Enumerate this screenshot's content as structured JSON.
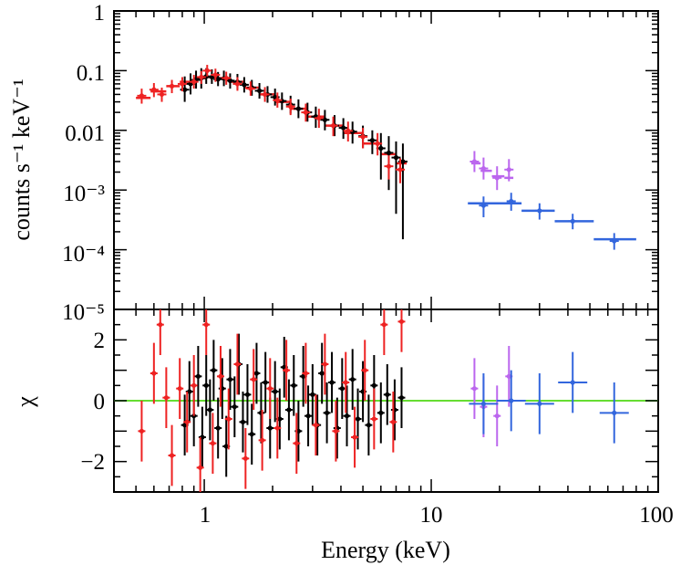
{
  "chart_data": [
    {
      "panel": "spectrum",
      "type": "scatter",
      "xscale": "log",
      "yscale": "log",
      "xlim": [
        0.4,
        100
      ],
      "ylim": [
        1e-05,
        1
      ],
      "ylabel": "counts s⁻¹ keV⁻¹",
      "ytick_labels": [
        "1",
        "0.1",
        "0.01",
        "10⁻³",
        "10⁻⁴",
        "10⁻⁵"
      ],
      "series": [
        {
          "color": "#000000",
          "style": "errorbars",
          "points": [
            {
              "x": 0.82,
              "y": 0.048,
              "lo": 0.03,
              "hi": 0.08
            },
            {
              "x": 0.87,
              "y": 0.06,
              "lo": 0.04,
              "hi": 0.09
            },
            {
              "x": 0.92,
              "y": 0.07,
              "lo": 0.05,
              "hi": 0.1
            },
            {
              "x": 0.97,
              "y": 0.075,
              "lo": 0.05,
              "hi": 0.11
            },
            {
              "x": 1.02,
              "y": 0.08,
              "lo": 0.06,
              "hi": 0.11
            },
            {
              "x": 1.08,
              "y": 0.078,
              "lo": 0.06,
              "hi": 0.105
            },
            {
              "x": 1.15,
              "y": 0.072,
              "lo": 0.055,
              "hi": 0.095
            },
            {
              "x": 1.22,
              "y": 0.074,
              "lo": 0.055,
              "hi": 0.1
            },
            {
              "x": 1.3,
              "y": 0.068,
              "lo": 0.05,
              "hi": 0.09
            },
            {
              "x": 1.4,
              "y": 0.065,
              "lo": 0.048,
              "hi": 0.088
            },
            {
              "x": 1.5,
              "y": 0.058,
              "lo": 0.043,
              "hi": 0.078
            },
            {
              "x": 1.62,
              "y": 0.052,
              "lo": 0.038,
              "hi": 0.07
            },
            {
              "x": 1.75,
              "y": 0.046,
              "lo": 0.034,
              "hi": 0.062
            },
            {
              "x": 1.9,
              "y": 0.04,
              "lo": 0.029,
              "hi": 0.055
            },
            {
              "x": 2.05,
              "y": 0.036,
              "lo": 0.026,
              "hi": 0.05
            },
            {
              "x": 2.2,
              "y": 0.031,
              "lo": 0.022,
              "hi": 0.043
            },
            {
              "x": 2.4,
              "y": 0.027,
              "lo": 0.019,
              "hi": 0.038
            },
            {
              "x": 2.6,
              "y": 0.023,
              "lo": 0.016,
              "hi": 0.033
            },
            {
              "x": 2.85,
              "y": 0.02,
              "lo": 0.014,
              "hi": 0.029
            },
            {
              "x": 3.1,
              "y": 0.017,
              "lo": 0.011,
              "hi": 0.025
            },
            {
              "x": 3.4,
              "y": 0.015,
              "lo": 0.01,
              "hi": 0.022
            },
            {
              "x": 3.75,
              "y": 0.012,
              "lo": 0.008,
              "hi": 0.018
            },
            {
              "x": 4.1,
              "y": 0.011,
              "lo": 0.0072,
              "hi": 0.016
            },
            {
              "x": 4.5,
              "y": 0.0095,
              "lo": 0.006,
              "hi": 0.014
            },
            {
              "x": 5.0,
              "y": 0.008,
              "lo": 0.005,
              "hi": 0.012
            },
            {
              "x": 5.5,
              "y": 0.0068,
              "lo": 0.004,
              "hi": 0.01
            },
            {
              "x": 6.0,
              "y": 0.005,
              "lo": 0.0015,
              "hi": 0.009
            },
            {
              "x": 6.5,
              "y": 0.0042,
              "lo": 0.001,
              "hi": 0.008
            },
            {
              "x": 7.0,
              "y": 0.0035,
              "lo": 0.0004,
              "hi": 0.0065
            },
            {
              "x": 7.5,
              "y": 0.003,
              "lo": 0.00015,
              "hi": 0.006
            }
          ]
        },
        {
          "color": "#ee2222",
          "style": "errorbars",
          "points": [
            {
              "x": 0.53,
              "y": 0.038,
              "lo": 0.028,
              "hi": 0.05
            },
            {
              "x": 0.6,
              "y": 0.048,
              "lo": 0.036,
              "hi": 0.062
            },
            {
              "x": 0.65,
              "y": 0.04,
              "lo": 0.03,
              "hi": 0.052
            },
            {
              "x": 0.72,
              "y": 0.055,
              "lo": 0.042,
              "hi": 0.07
            },
            {
              "x": 0.8,
              "y": 0.06,
              "lo": 0.045,
              "hi": 0.078
            },
            {
              "x": 0.9,
              "y": 0.065,
              "lo": 0.05,
              "hi": 0.085
            },
            {
              "x": 0.97,
              "y": 0.078,
              "lo": 0.06,
              "hi": 0.098
            },
            {
              "x": 1.03,
              "y": 0.1,
              "lo": 0.08,
              "hi": 0.125
            },
            {
              "x": 1.12,
              "y": 0.085,
              "lo": 0.065,
              "hi": 0.108
            },
            {
              "x": 1.25,
              "y": 0.075,
              "lo": 0.058,
              "hi": 0.096
            },
            {
              "x": 1.4,
              "y": 0.06,
              "lo": 0.046,
              "hi": 0.078
            },
            {
              "x": 1.6,
              "y": 0.05,
              "lo": 0.038,
              "hi": 0.066
            },
            {
              "x": 1.85,
              "y": 0.04,
              "lo": 0.03,
              "hi": 0.053
            },
            {
              "x": 2.1,
              "y": 0.032,
              "lo": 0.024,
              "hi": 0.043
            },
            {
              "x": 2.4,
              "y": 0.025,
              "lo": 0.018,
              "hi": 0.034
            },
            {
              "x": 2.8,
              "y": 0.02,
              "lo": 0.014,
              "hi": 0.028
            },
            {
              "x": 3.2,
              "y": 0.016,
              "lo": 0.011,
              "hi": 0.023
            },
            {
              "x": 3.7,
              "y": 0.012,
              "lo": 0.008,
              "hi": 0.017
            },
            {
              "x": 4.3,
              "y": 0.0098,
              "lo": 0.0065,
              "hi": 0.014
            },
            {
              "x": 5.0,
              "y": 0.0078,
              "lo": 0.005,
              "hi": 0.011
            },
            {
              "x": 5.8,
              "y": 0.006,
              "lo": 0.0038,
              "hi": 0.009
            },
            {
              "x": 6.5,
              "y": 0.0025,
              "lo": 0.0015,
              "hi": 0.0038
            },
            {
              "x": 7.3,
              "y": 0.0022,
              "lo": 0.0013,
              "hi": 0.0034
            }
          ]
        },
        {
          "color": "#bb66ee",
          "style": "errorbars",
          "points": [
            {
              "x": 15.5,
              "y": 0.003,
              "lo": 0.002,
              "hi": 0.0045
            },
            {
              "x": 17.0,
              "y": 0.0023,
              "lo": 0.0015,
              "hi": 0.0035
            },
            {
              "x": 19.5,
              "y": 0.0016,
              "lo": 0.001,
              "hi": 0.0025
            },
            {
              "x": 22.0,
              "y": 0.0022,
              "lo": 0.0014,
              "hi": 0.0033
            }
          ]
        },
        {
          "color": "#3366dd",
          "style": "errorbars",
          "points": [
            {
              "x": 17.0,
              "y": 0.00055,
              "lo": 0.00035,
              "hi": 0.00078
            },
            {
              "x": 22.5,
              "y": 0.00065,
              "lo": 0.00045,
              "hi": 0.0009
            },
            {
              "x": 30.0,
              "y": 0.00045,
              "lo": 0.00032,
              "hi": 0.0006
            },
            {
              "x": 42.0,
              "y": 0.0003,
              "lo": 0.00022,
              "hi": 0.0004
            },
            {
              "x": 64.0,
              "y": 0.00014,
              "lo": 0.0001,
              "hi": 0.00019
            }
          ]
        }
      ],
      "model_steps": [
        {
          "color": "#ee2222",
          "steps": [
            [
              0.5,
              0.58,
              0.035
            ],
            [
              0.58,
              0.68,
              0.045
            ],
            [
              0.68,
              0.78,
              0.055
            ],
            [
              0.78,
              0.9,
              0.065
            ],
            [
              0.9,
              1.02,
              0.075
            ],
            [
              1.02,
              1.15,
              0.078
            ],
            [
              1.15,
              1.3,
              0.075
            ],
            [
              1.3,
              1.5,
              0.065
            ],
            [
              1.5,
              1.75,
              0.052
            ],
            [
              1.75,
              2.05,
              0.04
            ],
            [
              2.05,
              2.4,
              0.03
            ],
            [
              2.4,
              2.85,
              0.023
            ],
            [
              2.85,
              3.4,
              0.017
            ],
            [
              3.4,
              4.1,
              0.012
            ],
            [
              4.1,
              5.0,
              0.009
            ],
            [
              5.0,
              6.0,
              0.006
            ],
            [
              6.0,
              7.0,
              0.004
            ],
            [
              7.0,
              7.8,
              0.0028
            ]
          ]
        },
        {
          "color": "#bb66ee",
          "steps": [
            [
              15.0,
              16.5,
              0.0028
            ],
            [
              16.5,
              18.5,
              0.0021
            ],
            [
              18.5,
              21.0,
              0.0017
            ],
            [
              21.0,
              23.0,
              0.0016
            ]
          ]
        },
        {
          "color": "#3366dd",
          "steps": [
            [
              14.5,
              20.0,
              0.0006
            ],
            [
              20.0,
              25.0,
              0.0006
            ],
            [
              25.0,
              35.0,
              0.00045
            ],
            [
              35.0,
              52.0,
              0.0003
            ],
            [
              52.0,
              80.0,
              0.00015
            ]
          ]
        }
      ]
    },
    {
      "panel": "residuals",
      "type": "scatter",
      "xscale": "log",
      "yscale": "linear",
      "xlim": [
        0.4,
        100
      ],
      "ylim": [
        -3,
        3
      ],
      "xlabel": "Energy (keV)",
      "ylabel": "χ",
      "xtick_labels": [
        "1",
        "10",
        "100"
      ],
      "ytick_labels": [
        "2",
        "0",
        "−2"
      ],
      "zero_line_color": "#66dd33",
      "series": [
        {
          "color": "#000000",
          "style": "errorbars",
          "points": [
            {
              "x": 0.82,
              "y": -0.8
            },
            {
              "x": 0.86,
              "y": 0.3
            },
            {
              "x": 0.9,
              "y": -0.5
            },
            {
              "x": 0.94,
              "y": 0.8
            },
            {
              "x": 0.98,
              "y": -1.2
            },
            {
              "x": 1.02,
              "y": 0.5
            },
            {
              "x": 1.06,
              "y": -0.3
            },
            {
              "x": 1.1,
              "y": 1.0
            },
            {
              "x": 1.15,
              "y": -0.9
            },
            {
              "x": 1.2,
              "y": 0.4
            },
            {
              "x": 1.25,
              "y": -1.5
            },
            {
              "x": 1.3,
              "y": 0.7
            },
            {
              "x": 1.36,
              "y": -0.2
            },
            {
              "x": 1.42,
              "y": 1.2
            },
            {
              "x": 1.48,
              "y": -0.7
            },
            {
              "x": 1.55,
              "y": 0.2
            },
            {
              "x": 1.62,
              "y": -1.1
            },
            {
              "x": 1.7,
              "y": 0.9
            },
            {
              "x": 1.78,
              "y": -0.4
            },
            {
              "x": 1.86,
              "y": 0.6
            },
            {
              "x": 1.95,
              "y": -0.9
            },
            {
              "x": 2.05,
              "y": 0.3
            },
            {
              "x": 2.15,
              "y": -0.6
            },
            {
              "x": 2.25,
              "y": 1.1
            },
            {
              "x": 2.36,
              "y": -0.3
            },
            {
              "x": 2.48,
              "y": 0.5
            },
            {
              "x": 2.6,
              "y": -1.0
            },
            {
              "x": 2.73,
              "y": 0.8
            },
            {
              "x": 2.87,
              "y": -0.5
            },
            {
              "x": 3.0,
              "y": 0.2
            },
            {
              "x": 3.15,
              "y": -0.8
            },
            {
              "x": 3.3,
              "y": 0.9
            },
            {
              "x": 3.47,
              "y": -0.4
            },
            {
              "x": 3.65,
              "y": 0.6
            },
            {
              "x": 3.85,
              "y": -0.9
            },
            {
              "x": 4.05,
              "y": 0.4
            },
            {
              "x": 4.25,
              "y": -0.5
            },
            {
              "x": 4.5,
              "y": 0.7
            },
            {
              "x": 4.75,
              "y": -0.6
            },
            {
              "x": 5.0,
              "y": 0.3
            },
            {
              "x": 5.3,
              "y": -0.8
            },
            {
              "x": 5.6,
              "y": 0.5
            },
            {
              "x": 6.0,
              "y": -0.4
            },
            {
              "x": 6.4,
              "y": 0.2
            },
            {
              "x": 6.9,
              "y": -0.3
            },
            {
              "x": 7.4,
              "y": 0.1
            }
          ]
        },
        {
          "color": "#ee2222",
          "style": "errorbars",
          "points": [
            {
              "x": 0.53,
              "y": -1.0
            },
            {
              "x": 0.6,
              "y": 0.9
            },
            {
              "x": 0.64,
              "y": 2.5
            },
            {
              "x": 0.68,
              "y": 0.1
            },
            {
              "x": 0.72,
              "y": -1.8
            },
            {
              "x": 0.78,
              "y": 0.4
            },
            {
              "x": 0.84,
              "y": -0.7
            },
            {
              "x": 0.9,
              "y": 0.5
            },
            {
              "x": 0.96,
              "y": -2.2
            },
            {
              "x": 1.02,
              "y": 2.5
            },
            {
              "x": 1.09,
              "y": -1.4
            },
            {
              "x": 1.18,
              "y": 0.8
            },
            {
              "x": 1.28,
              "y": -0.6
            },
            {
              "x": 1.4,
              "y": 1.2
            },
            {
              "x": 1.52,
              "y": -1.9
            },
            {
              "x": 1.65,
              "y": 0.7
            },
            {
              "x": 1.8,
              "y": -1.3
            },
            {
              "x": 1.95,
              "y": 0.4
            },
            {
              "x": 2.1,
              "y": -0.9
            },
            {
              "x": 2.3,
              "y": 1.0
            },
            {
              "x": 2.55,
              "y": -1.4
            },
            {
              "x": 2.8,
              "y": 0.9
            },
            {
              "x": 3.1,
              "y": -0.8
            },
            {
              "x": 3.4,
              "y": 1.2
            },
            {
              "x": 3.8,
              "y": -1.0
            },
            {
              "x": 4.2,
              "y": 0.6
            },
            {
              "x": 4.6,
              "y": -1.2
            },
            {
              "x": 5.1,
              "y": 1.0
            },
            {
              "x": 5.6,
              "y": -0.6
            },
            {
              "x": 6.2,
              "y": 2.5
            },
            {
              "x": 6.8,
              "y": -0.7
            },
            {
              "x": 7.4,
              "y": 2.6
            }
          ]
        },
        {
          "color": "#bb66ee",
          "style": "errorbars",
          "points": [
            {
              "x": 15.5,
              "y": 0.4
            },
            {
              "x": 17.0,
              "y": -0.2
            },
            {
              "x": 19.5,
              "y": -0.5
            },
            {
              "x": 22.0,
              "y": 0.8
            }
          ]
        },
        {
          "color": "#3366dd",
          "style": "errorbars",
          "points": [
            {
              "x": 17.0,
              "y": -0.1
            },
            {
              "x": 22.5,
              "y": 0.0
            },
            {
              "x": 30.0,
              "y": -0.1
            },
            {
              "x": 42.0,
              "y": 0.6
            },
            {
              "x": 64.0,
              "y": -0.4
            }
          ]
        }
      ]
    }
  ]
}
